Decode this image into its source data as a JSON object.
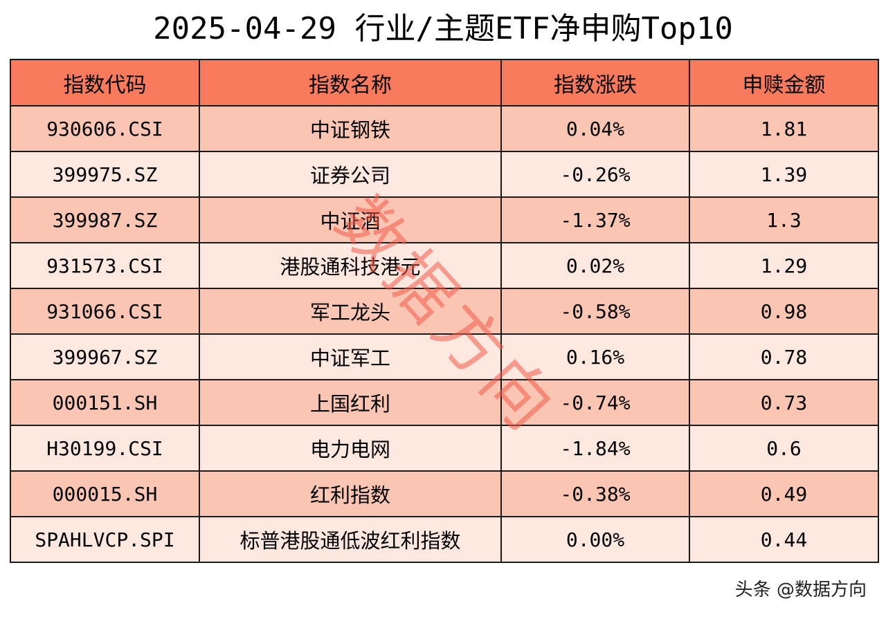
{
  "title": "2025-04-29 行业/主题ETF净申购Top10",
  "table": {
    "headers": [
      "指数代码",
      "指数名称",
      "指数涨跌",
      "申赎金额"
    ],
    "rows": [
      {
        "code": "930606.CSI",
        "name": "中证钢铁",
        "change": "0.04%",
        "amount": "1.81"
      },
      {
        "code": "399975.SZ",
        "name": "证券公司",
        "change": "-0.26%",
        "amount": "1.39"
      },
      {
        "code": "399987.SZ",
        "name": "中证酒",
        "change": "-1.37%",
        "amount": "1.3"
      },
      {
        "code": "931573.CSI",
        "name": "港股通科技港元",
        "change": "0.02%",
        "amount": "1.29"
      },
      {
        "code": "931066.CSI",
        "name": "军工龙头",
        "change": "-0.58%",
        "amount": "0.98"
      },
      {
        "code": "399967.SZ",
        "name": "中证军工",
        "change": "0.16%",
        "amount": "0.78"
      },
      {
        "code": "000151.SH",
        "name": "上国红利",
        "change": "-0.74%",
        "amount": "0.73"
      },
      {
        "code": "H30199.CSI",
        "name": "电力电网",
        "change": "-1.84%",
        "amount": "0.6"
      },
      {
        "code": "000015.SH",
        "name": "红利指数",
        "change": "-0.38%",
        "amount": "0.49"
      },
      {
        "code": "SPAHLVCP.SPI",
        "name": "标普港股通低波红利指数",
        "change": "0.00%",
        "amount": "0.44"
      }
    ]
  },
  "watermark": "数据方向",
  "footer": "头条 @数据方向",
  "colors": {
    "header_bg": "#f87a5c",
    "row_odd_bg": "#fac5b2",
    "row_even_bg": "#fde8e0",
    "watermark": "#f05a4a"
  }
}
